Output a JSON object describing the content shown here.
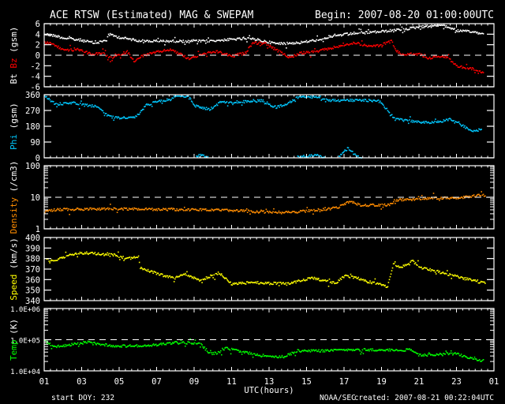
{
  "header": {
    "title": "ACE RTSW (Estimated) MAG & SWEPAM",
    "begin": "Begin: 2007-08-20 01:00:00UTC"
  },
  "footer": {
    "start_doy": "start DOY: 232",
    "agency": "NOAA/SEC",
    "created": "created: 2007-08-21 00:22:04UTC"
  },
  "colors": {
    "background": "#000000",
    "axes": "#ffffff",
    "bt": "#ffffff",
    "bz": "#ff0000",
    "phi": "#00c8ff",
    "density": "#ff8c00",
    "speed": "#ffff00",
    "temp": "#00ff00"
  },
  "chart_data": [
    {
      "id": "mag",
      "type": "scatter",
      "ylabel": [
        {
          "text": "Bt",
          "color": "#ffffff"
        },
        {
          "text": " Bz",
          "color": "#ff0000"
        },
        {
          "text": " (gsm)",
          "color": "#ffffff"
        }
      ],
      "yscale": "linear",
      "ylim": [
        -6,
        6
      ],
      "yticks": [
        6,
        4,
        2,
        0,
        -2,
        -4,
        -6
      ],
      "ytick_labels": [
        "6",
        "4",
        "2",
        "0",
        "-2",
        "-4",
        "-6"
      ],
      "reference_line": 0,
      "series": [
        {
          "name": "Bt",
          "color": "#ffffff",
          "segments": [
            [
              [
                0,
                4.1
              ],
              [
                0.6,
                3.8
              ],
              [
                1.0,
                3.4
              ],
              [
                1.9,
                3.0
              ],
              [
                2.7,
                2.4
              ],
              [
                3.3,
                3.0
              ],
              [
                3.4,
                4.1
              ],
              [
                4.0,
                3.5
              ],
              [
                4.8,
                3.0
              ],
              [
                5.4,
                2.8
              ],
              [
                6.0,
                2.8
              ],
              [
                7.3,
                2.8
              ],
              [
                8.5,
                2.8
              ],
              [
                9.5,
                3.0
              ],
              [
                10.3,
                3.2
              ],
              [
                11.1,
                3.2
              ],
              [
                12.4,
                2.3
              ],
              [
                13.6,
                2.5
              ],
              [
                14.5,
                3.0
              ],
              [
                15.3,
                3.7
              ],
              [
                16.5,
                4.3
              ],
              [
                17.9,
                4.6
              ],
              [
                19.1,
                5.0
              ],
              [
                20.0,
                5.5
              ],
              [
                21.2,
                5.9
              ],
              [
                22.0,
                4.8
              ],
              [
                22.9,
                4.5
              ],
              [
                23.4,
                4.2
              ]
            ]
          ]
        },
        {
          "name": "Bz",
          "color": "#ff0000",
          "segments": [
            [
              [
                0,
                2.5
              ],
              [
                0.4,
                2.3
              ],
              [
                1.0,
                1.1
              ],
              [
                1.8,
                1.2
              ],
              [
                2.5,
                0.3
              ],
              [
                3.1,
                0.5
              ],
              [
                3.5,
                -0.5
              ],
              [
                4.4,
                0.8
              ],
              [
                4.8,
                -1.1
              ],
              [
                5.2,
                0
              ],
              [
                6.1,
                0.8
              ],
              [
                6.7,
                1.2
              ],
              [
                7.7,
                -0.5
              ],
              [
                8.6,
                0.5
              ],
              [
                9.2,
                0.8
              ],
              [
                9.9,
                0
              ],
              [
                10.7,
                0.5
              ],
              [
                11.1,
                2.5
              ],
              [
                11.8,
                2.3
              ],
              [
                12.4,
                1.0
              ],
              [
                13.1,
                -0.3
              ],
              [
                13.6,
                0.5
              ],
              [
                14.5,
                0.8
              ],
              [
                15.3,
                1.5
              ],
              [
                16.6,
                2.5
              ],
              [
                17.2,
                1.8
              ],
              [
                17.9,
                2.0
              ],
              [
                18.5,
                2.8
              ],
              [
                18.7,
                1.2
              ],
              [
                19.0,
                0.3
              ],
              [
                20.0,
                0.3
              ],
              [
                20.5,
                -0.5
              ],
              [
                21.0,
                0
              ],
              [
                21.5,
                -0.3
              ],
              [
                22.0,
                -2.0
              ],
              [
                22.6,
                -2.3
              ],
              [
                23.0,
                -2.6
              ],
              [
                23.4,
                -3.2
              ]
            ]
          ]
        }
      ]
    },
    {
      "id": "phi",
      "type": "scatter",
      "ylabel": [
        {
          "text": "Phi",
          "color": "#00c8ff"
        },
        {
          "text": " (gsm)",
          "color": "#ffffff"
        }
      ],
      "yscale": "linear",
      "ylim": [
        0,
        360
      ],
      "yticks": [
        360,
        270,
        180,
        90,
        0
      ],
      "ytick_labels": [
        "360",
        "270",
        "180",
        "90",
        "0"
      ],
      "series": [
        {
          "name": "Phi",
          "color": "#00c8ff",
          "segments": [
            [
              [
                0,
                355
              ],
              [
                0.6,
                308
              ],
              [
                1.4,
                317
              ],
              [
                2.3,
                303
              ],
              [
                2.9,
                294
              ],
              [
                3.1,
                265
              ],
              [
                3.5,
                237
              ],
              [
                4.0,
                232
              ],
              [
                4.8,
                232
              ],
              [
                5.0,
                251
              ],
              [
                5.4,
                303
              ],
              [
                6.0,
                327
              ],
              [
                6.7,
                336
              ],
              [
                6.9,
                355
              ],
              [
                7.7,
                355
              ],
              [
                8.0,
                300
              ],
              [
                8.8,
                280
              ],
              [
                9.4,
                322
              ],
              [
                10.3,
                322
              ],
              [
                11.0,
                325
              ],
              [
                11.6,
                330
              ],
              [
                12.0,
                308
              ],
              [
                12.3,
                289
              ],
              [
                13.0,
                317
              ],
              [
                13.6,
                355
              ],
              [
                14.3,
                350
              ],
              [
                15.3,
                331
              ],
              [
                15.8,
                331
              ],
              [
                17.8,
                330
              ],
              [
                18.3,
                275
              ],
              [
                18.7,
                223
              ],
              [
                19.5,
                213
              ],
              [
                20.4,
                204
              ],
              [
                21.2,
                213
              ],
              [
                21.6,
                223
              ],
              [
                22.5,
                175
              ],
              [
                22.9,
                156
              ],
              [
                23.3,
                166
              ]
            ],
            [
              [
                8.1,
                15
              ],
              [
                8.4,
                18
              ],
              [
                8.7,
                10
              ]
            ],
            [
              [
                13.5,
                10
              ],
              [
                14.0,
                12
              ],
              [
                14.5,
                18
              ],
              [
                14.9,
                8
              ]
            ],
            [
              [
                15.7,
                10
              ],
              [
                16.2,
                60
              ],
              [
                16.6,
                15
              ],
              [
                16.9,
                3
              ]
            ]
          ]
        }
      ]
    },
    {
      "id": "density",
      "type": "scatter",
      "ylabel": [
        {
          "text": "Density",
          "color": "#ff8c00"
        },
        {
          "text": " (/cm3)",
          "color": "#ffffff"
        }
      ],
      "yscale": "log",
      "ylim": [
        1,
        100
      ],
      "yticks": [
        100,
        10,
        1
      ],
      "ytick_labels": [
        "100",
        "10",
        "1"
      ],
      "reference_line": 10,
      "series": [
        {
          "name": "Density",
          "color": "#ff8c00",
          "segments": [
            [
              [
                0,
                3.6
              ],
              [
                0.5,
                4.2
              ],
              [
                2,
                4.4
              ],
              [
                4,
                4.5
              ],
              [
                6,
                4.3
              ],
              [
                8,
                4.2
              ],
              [
                10,
                4.0
              ],
              [
                11.5,
                3.6
              ],
              [
                12.4,
                3.5
              ],
              [
                13.5,
                3.6
              ],
              [
                14.5,
                4.1
              ],
              [
                15.6,
                4.8
              ],
              [
                16.3,
                7.9
              ],
              [
                16.8,
                5.9
              ],
              [
                18.4,
                5.9
              ],
              [
                18.7,
                8.5
              ],
              [
                19.5,
                8.8
              ],
              [
                20.7,
                10
              ],
              [
                22,
                9.6
              ],
              [
                23.3,
                12.5
              ],
              [
                23.5,
                11.5
              ]
            ]
          ]
        }
      ]
    },
    {
      "id": "speed",
      "type": "scatter",
      "ylabel": [
        {
          "text": "Speed",
          "color": "#ffff00"
        },
        {
          "text": " (km/s)",
          "color": "#ffffff"
        }
      ],
      "yscale": "linear",
      "ylim": [
        340,
        400
      ],
      "yticks": [
        400,
        390,
        380,
        370,
        360,
        350,
        340
      ],
      "ytick_labels": [
        "400",
        "390",
        "380",
        "370",
        "360",
        "350",
        "340"
      ],
      "series": [
        {
          "name": "Speed",
          "color": "#ffff00",
          "segments": [
            [
              [
                0.1,
                380
              ],
              [
                0.4,
                378
              ],
              [
                1.3,
                384
              ],
              [
                2.1,
                386
              ],
              [
                2.9,
                385
              ],
              [
                3.7,
                384
              ],
              [
                4.4,
                380.5
              ],
              [
                5.0,
                382
              ],
              [
                5.1,
                372
              ],
              [
                6.1,
                365.5
              ],
              [
                6.9,
                362
              ],
              [
                7.5,
                365.5
              ],
              [
                8.3,
                360
              ],
              [
                9.3,
                367
              ],
              [
                10,
                356
              ],
              [
                11,
                358
              ],
              [
                12,
                357
              ],
              [
                13,
                357
              ],
              [
                14.3,
                362
              ],
              [
                15.5,
                357
              ],
              [
                16,
                364
              ],
              [
                16.6,
                362.5
              ],
              [
                17.4,
                358
              ],
              [
                18.3,
                354
              ],
              [
                18.6,
                375.5
              ],
              [
                19,
                372
              ],
              [
                19.6,
                378.5
              ],
              [
                20.1,
                372
              ],
              [
                21.2,
                367
              ],
              [
                22.2,
                362.5
              ],
              [
                23.5,
                357
              ]
            ]
          ]
        }
      ]
    },
    {
      "id": "temp",
      "type": "scatter",
      "ylabel": [
        {
          "text": "Temp",
          "color": "#00ff00"
        },
        {
          "text": " (K)",
          "color": "#ffffff"
        }
      ],
      "yscale": "log",
      "ylim": [
        10000,
        1000000
      ],
      "yticks": [
        1000000,
        100000,
        10000
      ],
      "ytick_labels": [
        "1.0E+06",
        "1.0E+05",
        "1.0E+04"
      ],
      "reference_line": 100000,
      "series": [
        {
          "name": "Temp",
          "color": "#00ff00",
          "segments": [
            [
              [
                0,
                93000
              ],
              [
                0.5,
                62000
              ],
              [
                2.3,
                85000
              ],
              [
                3.7,
                66000
              ],
              [
                5.4,
                66000
              ],
              [
                7,
                85000
              ],
              [
                8.3,
                79000
              ],
              [
                8.8,
                37000
              ],
              [
                9.3,
                40000
              ],
              [
                9.7,
                56000
              ],
              [
                10.7,
                41000
              ],
              [
                11.7,
                30000
              ],
              [
                12.8,
                30000
              ],
              [
                13.5,
                46000
              ],
              [
                14.8,
                46000
              ],
              [
                16.5,
                50000
              ],
              [
                18.3,
                49000
              ],
              [
                19.6,
                49000
              ],
              [
                20,
                33000
              ],
              [
                22,
                37000
              ],
              [
                22.4,
                30000
              ],
              [
                23.2,
                22000
              ],
              [
                23.4,
                24000
              ]
            ]
          ]
        }
      ]
    }
  ],
  "xaxis": {
    "label": "UTC(hours)",
    "range_hours": [
      0,
      24
    ],
    "tick_labels": [
      "01",
      "03",
      "05",
      "07",
      "09",
      "11",
      "13",
      "15",
      "17",
      "19",
      "21",
      "23",
      "01"
    ]
  }
}
